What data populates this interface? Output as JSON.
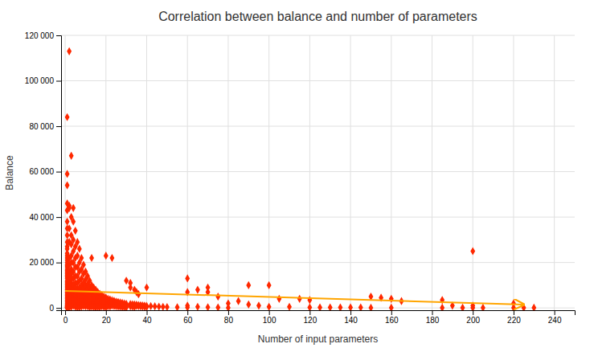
{
  "chart_data": {
    "type": "scatter",
    "title": "Correlation between balance and number of parameters",
    "xlabel": "Number of input parameters",
    "ylabel": "Balance",
    "xlim": [
      -2,
      250
    ],
    "ylim": [
      -1000,
      120000
    ],
    "xticks": [
      0,
      20,
      40,
      60,
      80,
      100,
      120,
      140,
      160,
      180,
      200,
      220,
      240
    ],
    "yticks": [
      0,
      {
        "value": 20000,
        "label": "20 000"
      },
      {
        "value": 40000,
        "label": "40 000"
      },
      {
        "value": 60000,
        "label": "60 000"
      },
      {
        "value": 80000,
        "label": "80 000"
      },
      {
        "value": 100000,
        "label": "100 000"
      },
      {
        "value": 120000,
        "label": "120 000"
      }
    ],
    "grid": true,
    "series": [
      {
        "type": "scatter",
        "marker": "diamond",
        "color": "#FF2800",
        "x": [
          1,
          1,
          1,
          1,
          1,
          1,
          1,
          1,
          1,
          1,
          1,
          1,
          1,
          1,
          1,
          1,
          1,
          1,
          1,
          1,
          1,
          1,
          1,
          1,
          1,
          1,
          1,
          1,
          1,
          1,
          1,
          1,
          1,
          1,
          1,
          1,
          1,
          1,
          1,
          1,
          1,
          1,
          1,
          1,
          1,
          1,
          1,
          1,
          1,
          1,
          1,
          1,
          1,
          1,
          1,
          1,
          1,
          1,
          1,
          1,
          2,
          2,
          2,
          2,
          2,
          2,
          2,
          2,
          2,
          2,
          2,
          2,
          2,
          2,
          2,
          2,
          2,
          2,
          2,
          2,
          2,
          2,
          2,
          2,
          2,
          2,
          2,
          2,
          2,
          2,
          3,
          3,
          3,
          3,
          3,
          3,
          3,
          3,
          3,
          3,
          3,
          3,
          3,
          3,
          3,
          3,
          3,
          3,
          3,
          3,
          4,
          4,
          4,
          4,
          4,
          4,
          4,
          4,
          4,
          4,
          4,
          4,
          4,
          4,
          4,
          5,
          5,
          5,
          5,
          5,
          5,
          5,
          5,
          5,
          5,
          5,
          5,
          5,
          5,
          6,
          6,
          6,
          6,
          6,
          6,
          6,
          6,
          6,
          6,
          6,
          6,
          6,
          7,
          7,
          7,
          7,
          7,
          7,
          7,
          7,
          7,
          7,
          7,
          7,
          8,
          8,
          8,
          8,
          8,
          8,
          8,
          8,
          8,
          8,
          8,
          9,
          9,
          9,
          9,
          9,
          9,
          9,
          9,
          9,
          9,
          10,
          10,
          10,
          10,
          10,
          10,
          10,
          10,
          10,
          10,
          11,
          11,
          11,
          11,
          11,
          11,
          11,
          11,
          11,
          12,
          12,
          12,
          12,
          12,
          12,
          12,
          12,
          12,
          13,
          13,
          13,
          13,
          13,
          13,
          13,
          13,
          13,
          14,
          14,
          14,
          14,
          14,
          14,
          14,
          14,
          15,
          15,
          15,
          15,
          15,
          15,
          15,
          15,
          16,
          16,
          16,
          16,
          16,
          16,
          16,
          17,
          17,
          17,
          17,
          17,
          17,
          17,
          18,
          18,
          18,
          18,
          18,
          18,
          19,
          19,
          19,
          19,
          19,
          19,
          20,
          20,
          20,
          20,
          20,
          20,
          20,
          21,
          21,
          21,
          21,
          21,
          22,
          22,
          22,
          22,
          22,
          23,
          23,
          23,
          23,
          23,
          24,
          24,
          24,
          24,
          25,
          25,
          25,
          25,
          26,
          26,
          26,
          26,
          27,
          27,
          27,
          27,
          28,
          28,
          28,
          28,
          29,
          29,
          29,
          29,
          30,
          30,
          30,
          30,
          30,
          32,
          32,
          32,
          32,
          32,
          33,
          33,
          33,
          34,
          34,
          34,
          34,
          35,
          35,
          35,
          36,
          36,
          36,
          37,
          37,
          38,
          38,
          39,
          39,
          40,
          40,
          40,
          42,
          44,
          46,
          48,
          50,
          55,
          60,
          60,
          60,
          60,
          65,
          65,
          70,
          70,
          70,
          75,
          75,
          80,
          80,
          85,
          90,
          90,
          95,
          100,
          100,
          105,
          110,
          115,
          120,
          120,
          125,
          130,
          135,
          140,
          145,
          150,
          150,
          155,
          160,
          160,
          165,
          185,
          185,
          190,
          195,
          200,
          200,
          200,
          205,
          220,
          220,
          225,
          230
        ],
        "values": [
          84000,
          59000,
          54000,
          46000,
          43000,
          38000,
          35000,
          32000,
          29000,
          27000,
          26000,
          24000,
          23000,
          22000,
          21000,
          20000,
          19000,
          18500,
          18000,
          17000,
          16500,
          16000,
          15500,
          15000,
          14500,
          14000,
          13500,
          13000,
          12000,
          11500,
          11000,
          10500,
          10000,
          9500,
          9000,
          8500,
          8000,
          7500,
          7000,
          6500,
          6000,
          5500,
          5000,
          4500,
          4000,
          3500,
          3000,
          2500,
          2000,
          1500,
          1200,
          1000,
          800,
          600,
          400,
          300,
          200,
          100,
          50,
          0,
          113000,
          45000,
          44000,
          35000,
          29000,
          22000,
          19000,
          16000,
          14000,
          12000,
          11000,
          10000,
          9000,
          8000,
          7500,
          7000,
          6500,
          6000,
          5500,
          5000,
          4500,
          4000,
          3500,
          3000,
          2500,
          2000,
          1500,
          1000,
          500,
          200,
          67000,
          40000,
          32000,
          28000,
          23000,
          20000,
          17000,
          15000,
          13000,
          11000,
          9500,
          8000,
          7000,
          6000,
          5000,
          4000,
          3000,
          2000,
          1000,
          500,
          44000,
          38000,
          30000,
          25000,
          20000,
          16000,
          13000,
          10000,
          8000,
          6500,
          5000,
          4000,
          3000,
          2000,
          1000,
          34000,
          27000,
          22000,
          18000,
          14000,
          11000,
          9000,
          7000,
          5500,
          4000,
          3000,
          2000,
          1000,
          500,
          29000,
          23000,
          18000,
          14000,
          11000,
          8500,
          6500,
          5000,
          3500,
          2500,
          1500,
          700,
          300,
          26000,
          20000,
          16000,
          12000,
          9000,
          7000,
          5500,
          4000,
          2800,
          1800,
          900,
          300,
          22000,
          17000,
          13000,
          10000,
          7500,
          5800,
          4400,
          3200,
          2200,
          1300,
          600,
          19000,
          15000,
          11000,
          8500,
          6500,
          5000,
          3700,
          2600,
          1700,
          900,
          16000,
          12500,
          9500,
          7200,
          5500,
          4200,
          3100,
          2200,
          1400,
          700,
          14000,
          10500,
          8000,
          6000,
          4500,
          3300,
          2300,
          1400,
          700,
          12000,
          9000,
          6800,
          5100,
          3800,
          2700,
          1800,
          900,
          300,
          22000,
          10000,
          7500,
          5600,
          4100,
          3000,
          2100,
          1300,
          600,
          9000,
          6800,
          5000,
          3700,
          2700,
          1800,
          1000,
          400,
          8000,
          5900,
          4400,
          3200,
          2300,
          1500,
          800,
          200,
          7000,
          5200,
          3900,
          2800,
          1900,
          1100,
          400,
          6200,
          4600,
          3400,
          2400,
          1600,
          900,
          300,
          5600,
          4100,
          3000,
          2100,
          1300,
          700,
          5000,
          3700,
          2700,
          1800,
          1100,
          500,
          23000,
          4500,
          3300,
          2300,
          1500,
          800,
          200,
          4000,
          3000,
          2100,
          1300,
          700,
          3700,
          2700,
          1900,
          1200,
          600,
          22000,
          3400,
          2500,
          1700,
          1000,
          3100,
          2300,
          1500,
          800,
          2800,
          2100,
          1400,
          700,
          2600,
          1900,
          1300,
          600,
          2400,
          1700,
          1100,
          500,
          2200,
          1600,
          1000,
          400,
          2000,
          1500,
          900,
          300,
          12000,
          1800,
          1300,
          800,
          200,
          11000,
          9000,
          1700,
          1200,
          700,
          1600,
          1100,
          600,
          8000,
          1500,
          1000,
          400,
          7000,
          1400,
          900,
          6000,
          1300,
          800,
          1200,
          700,
          1100,
          600,
          1000,
          500,
          9000,
          900,
          400,
          800,
          700,
          600,
          500,
          400,
          300,
          13000,
          7000,
          1000,
          200,
          8000,
          500,
          9000,
          7000,
          300,
          5000,
          200,
          2000,
          100,
          3000,
          10000,
          1500,
          1000,
          10000,
          500,
          4000,
          500,
          4000,
          3500,
          200,
          200,
          200,
          200,
          200,
          200,
          5000,
          100,
          4500,
          4000,
          100,
          3000,
          3500,
          100,
          1000,
          100,
          25000,
          1000,
          100,
          100,
          2000,
          100,
          100,
          100
        ]
      },
      {
        "type": "line",
        "marker": "arrow",
        "color": "#FFA500",
        "x": [
          0,
          225
        ],
        "values": [
          7500,
          1500
        ]
      }
    ]
  }
}
